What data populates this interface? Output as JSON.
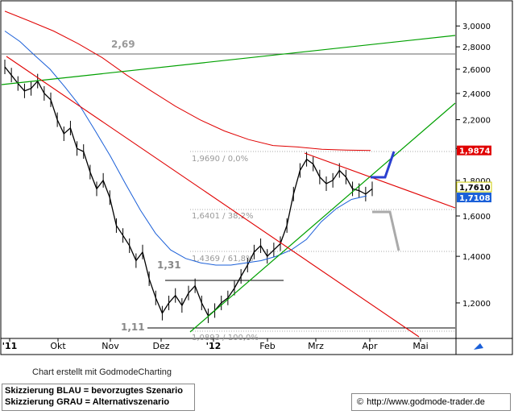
{
  "chart_data": {
    "type": "line",
    "title": "",
    "xlabel": "",
    "ylabel": "",
    "scale": "log",
    "ylim": [
      1.09,
      3.2
    ],
    "x_ticks": [
      "'11",
      "Okt",
      "Nov",
      "Dez",
      "'12",
      "Feb",
      "Mrz",
      "Apr",
      "Mai"
    ],
    "y_ticks": [
      {
        "value": 3.0,
        "label": "3,0000"
      },
      {
        "value": 2.8,
        "label": "2,8000"
      },
      {
        "value": 2.6,
        "label": "2,6000"
      },
      {
        "value": 2.4,
        "label": "2,4000"
      },
      {
        "value": 2.2,
        "label": "2,2000"
      },
      {
        "value": 2.0,
        "label": "2,0000"
      },
      {
        "value": 1.8,
        "label": "1,8000"
      },
      {
        "value": 1.6,
        "label": "1,6000"
      },
      {
        "value": 1.4,
        "label": "1,4000"
      },
      {
        "value": 1.2,
        "label": "1,2000"
      }
    ],
    "price_labels": [
      {
        "value": 1.9874,
        "label": "1,9874",
        "color": "#e00000"
      },
      {
        "value": 1.761,
        "label": "1,7610",
        "color": "#ffff00"
      },
      {
        "value": 1.7108,
        "label": "1,7108",
        "color": "#1a5fd8"
      }
    ],
    "annotations": [
      {
        "text": "2,69",
        "value": 2.69
      },
      {
        "text": "1,31",
        "value": 1.31
      },
      {
        "text": "1,11",
        "value": 1.11
      }
    ],
    "fib_levels": [
      {
        "label": "1,9690 / 0,0%",
        "value": 1.969
      },
      {
        "label": "1,6401 / 38,2%",
        "value": 1.6401
      },
      {
        "label": "1,4369 / 61,8%",
        "value": 1.4369
      },
      {
        "label": "1,0893 / 100,0%",
        "value": 1.0893
      }
    ],
    "series": [
      {
        "name": "",
        "color": "#000000",
        "values": [
          2.62,
          2.55,
          2.48,
          2.42,
          2.44,
          2.5,
          2.4,
          2.35,
          2.2,
          2.1,
          2.14,
          2.0,
          1.98,
          1.85,
          1.75,
          1.8,
          1.7,
          1.55,
          1.5,
          1.45,
          1.38,
          1.42,
          1.3,
          1.22,
          1.16,
          1.2,
          1.23,
          1.19,
          1.24,
          1.27,
          1.2,
          1.15,
          1.17,
          1.2,
          1.22,
          1.26,
          1.31,
          1.36,
          1.42,
          1.45,
          1.4,
          1.43,
          1.46,
          1.55,
          1.72,
          1.86,
          1.93,
          1.9,
          1.82,
          1.78,
          1.8,
          1.86,
          1.82,
          1.75,
          1.74,
          1.72,
          1.75
        ]
      },
      {
        "name": "",
        "color": "#1a5fd8",
        "values": [
          2.95,
          2.85,
          2.72,
          2.6,
          2.45,
          2.3,
          2.12,
          1.95,
          1.78,
          1.63,
          1.51,
          1.43,
          1.39,
          1.37,
          1.36,
          1.36,
          1.37,
          1.38,
          1.4,
          1.43,
          1.48,
          1.57,
          1.64,
          1.69,
          1.71
        ]
      },
      {
        "name": "",
        "color": "#e00000",
        "values": [
          3.15,
          3.05,
          2.95,
          2.83,
          2.7,
          2.55,
          2.42,
          2.3,
          2.2,
          2.12,
          2.06,
          2.02,
          2.01,
          1.995,
          1.99,
          1.9874
        ]
      }
    ]
  },
  "footer": {
    "credit": "Chart erstellt mit GodmodeCharting",
    "legend_blue": "Skizzierung BLAU = bevorzugtes Szenario",
    "legend_grey": "Skizzierung GRAU = Alternativszenario",
    "copyright": "©",
    "url": "http://www.godmode-trader.de"
  }
}
